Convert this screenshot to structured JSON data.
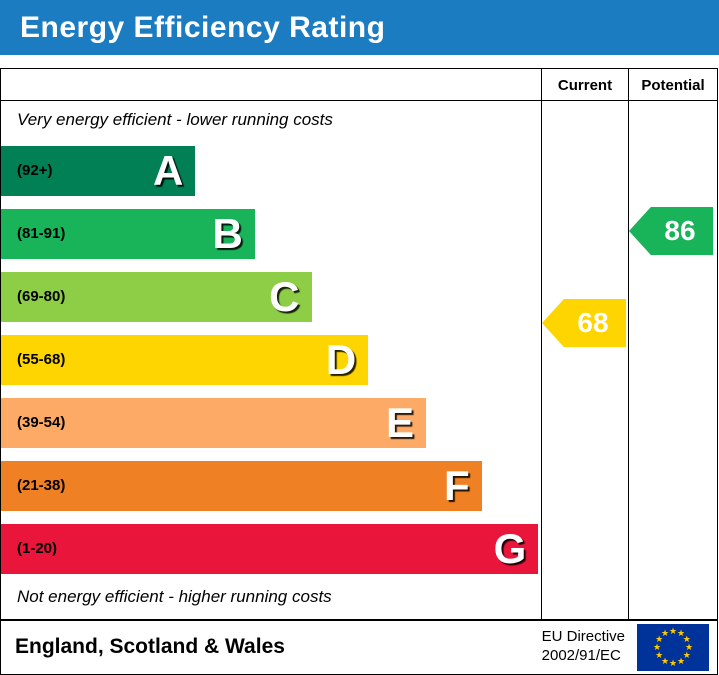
{
  "title": "Energy Efficiency Rating",
  "colors": {
    "banner_bg": "#1b7cc2",
    "flag_bg": "#003399",
    "flag_star": "#ffcc00"
  },
  "table_header": {
    "current_label": "Current",
    "potential_label": "Potential"
  },
  "notes": {
    "top": "Very energy efficient - lower running costs",
    "bottom": "Not energy efficient - higher running costs"
  },
  "footer": {
    "region": "England, Scotland & Wales",
    "directive_line1": "EU Directive",
    "directive_line2": "2002/91/EC"
  },
  "chart_data": {
    "type": "bar",
    "title": "Energy Efficiency Rating",
    "orientation": "horizontal",
    "bands": [
      {
        "letter": "A",
        "range": "(92+)",
        "color": "#008054",
        "width_pct": 36
      },
      {
        "letter": "B",
        "range": "(81-91)",
        "color": "#19b459",
        "width_pct": 47
      },
      {
        "letter": "C",
        "range": "(69-80)",
        "color": "#8dce46",
        "width_pct": 57.5
      },
      {
        "letter": "D",
        "range": "(55-68)",
        "color": "#ffd500",
        "width_pct": 68
      },
      {
        "letter": "E",
        "range": "(39-54)",
        "color": "#fcaa65",
        "width_pct": 78.7
      },
      {
        "letter": "F",
        "range": "(21-38)",
        "color": "#ef8023",
        "width_pct": 89
      },
      {
        "letter": "G",
        "range": "(1-20)",
        "color": "#e9153b",
        "width_pct": 99.5
      }
    ],
    "current": {
      "value": 68,
      "band": "D",
      "color": "#ffd500"
    },
    "potential": {
      "value": 86,
      "band": "B",
      "color": "#19b459"
    }
  }
}
